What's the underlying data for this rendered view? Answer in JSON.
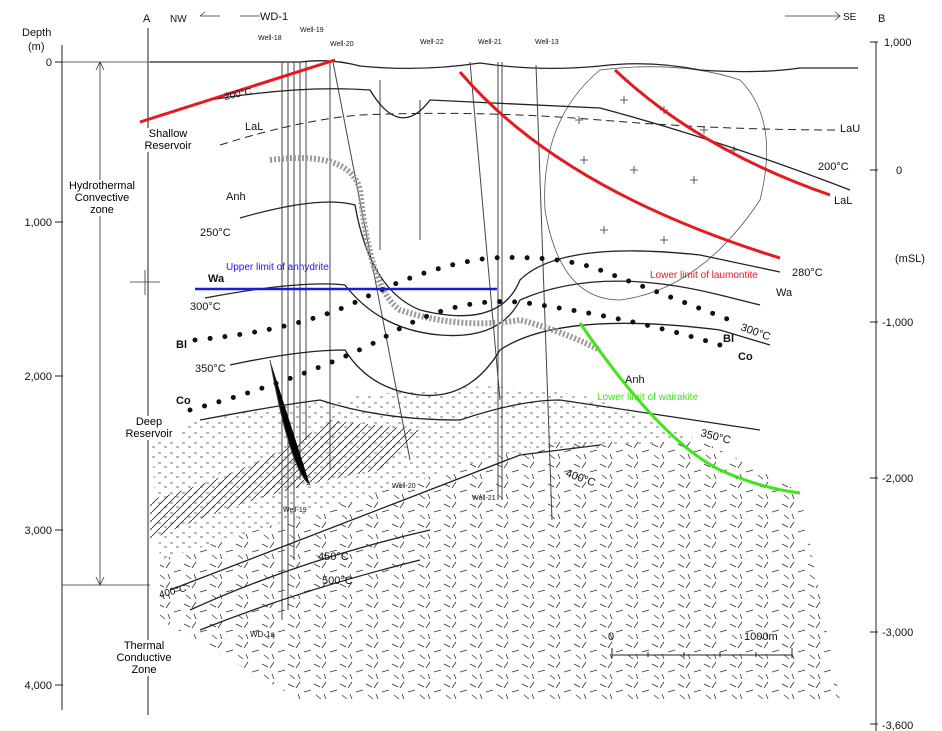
{
  "header": {
    "depth_label": "Depth",
    "depth_unit": "(m)",
    "section_start": "A",
    "section_end": "B",
    "direction_left": "NW",
    "direction_right": "SE"
  },
  "wells_top": [
    "WD-1",
    "Well-18",
    "Well-19",
    "Well-20",
    "Well-22",
    "Well-21",
    "Well-13"
  ],
  "wells_bottom": [
    "Well-19",
    "Well-20",
    "Well-21",
    "WD-1a"
  ],
  "left_axis": {
    "ticks": [
      "0",
      "1,000",
      "2,000",
      "3,000",
      "4,000"
    ]
  },
  "right_axis": {
    "unit": "(mSL)",
    "ticks": [
      "1,000",
      "0",
      "-1,000",
      "-2,000",
      "-3,000",
      "-3,600"
    ]
  },
  "zones": [
    "Shallow Reservoir",
    "Hydrothermal Convective zone",
    "Deep Reservoir",
    "Thermal Conductive Zone"
  ],
  "isotherms": [
    "200°C",
    "250°C",
    "300°C",
    "350°C",
    "400°C",
    "450°C",
    "500°C",
    "200°C",
    "280°C",
    "300°C",
    "350°C",
    "400°C"
  ],
  "mineral_labels": [
    "LaL",
    "Anh",
    "Wa",
    "Bl",
    "Co",
    "LaU",
    "LaL",
    "Wa",
    "Bl",
    "Co",
    "Anh"
  ],
  "limits": [
    "Upper limit of anhydrite",
    "Lower limit of laumontite",
    "Lower limit of wairakite"
  ],
  "scale_bar": {
    "start": "0",
    "end": "1000m"
  }
}
